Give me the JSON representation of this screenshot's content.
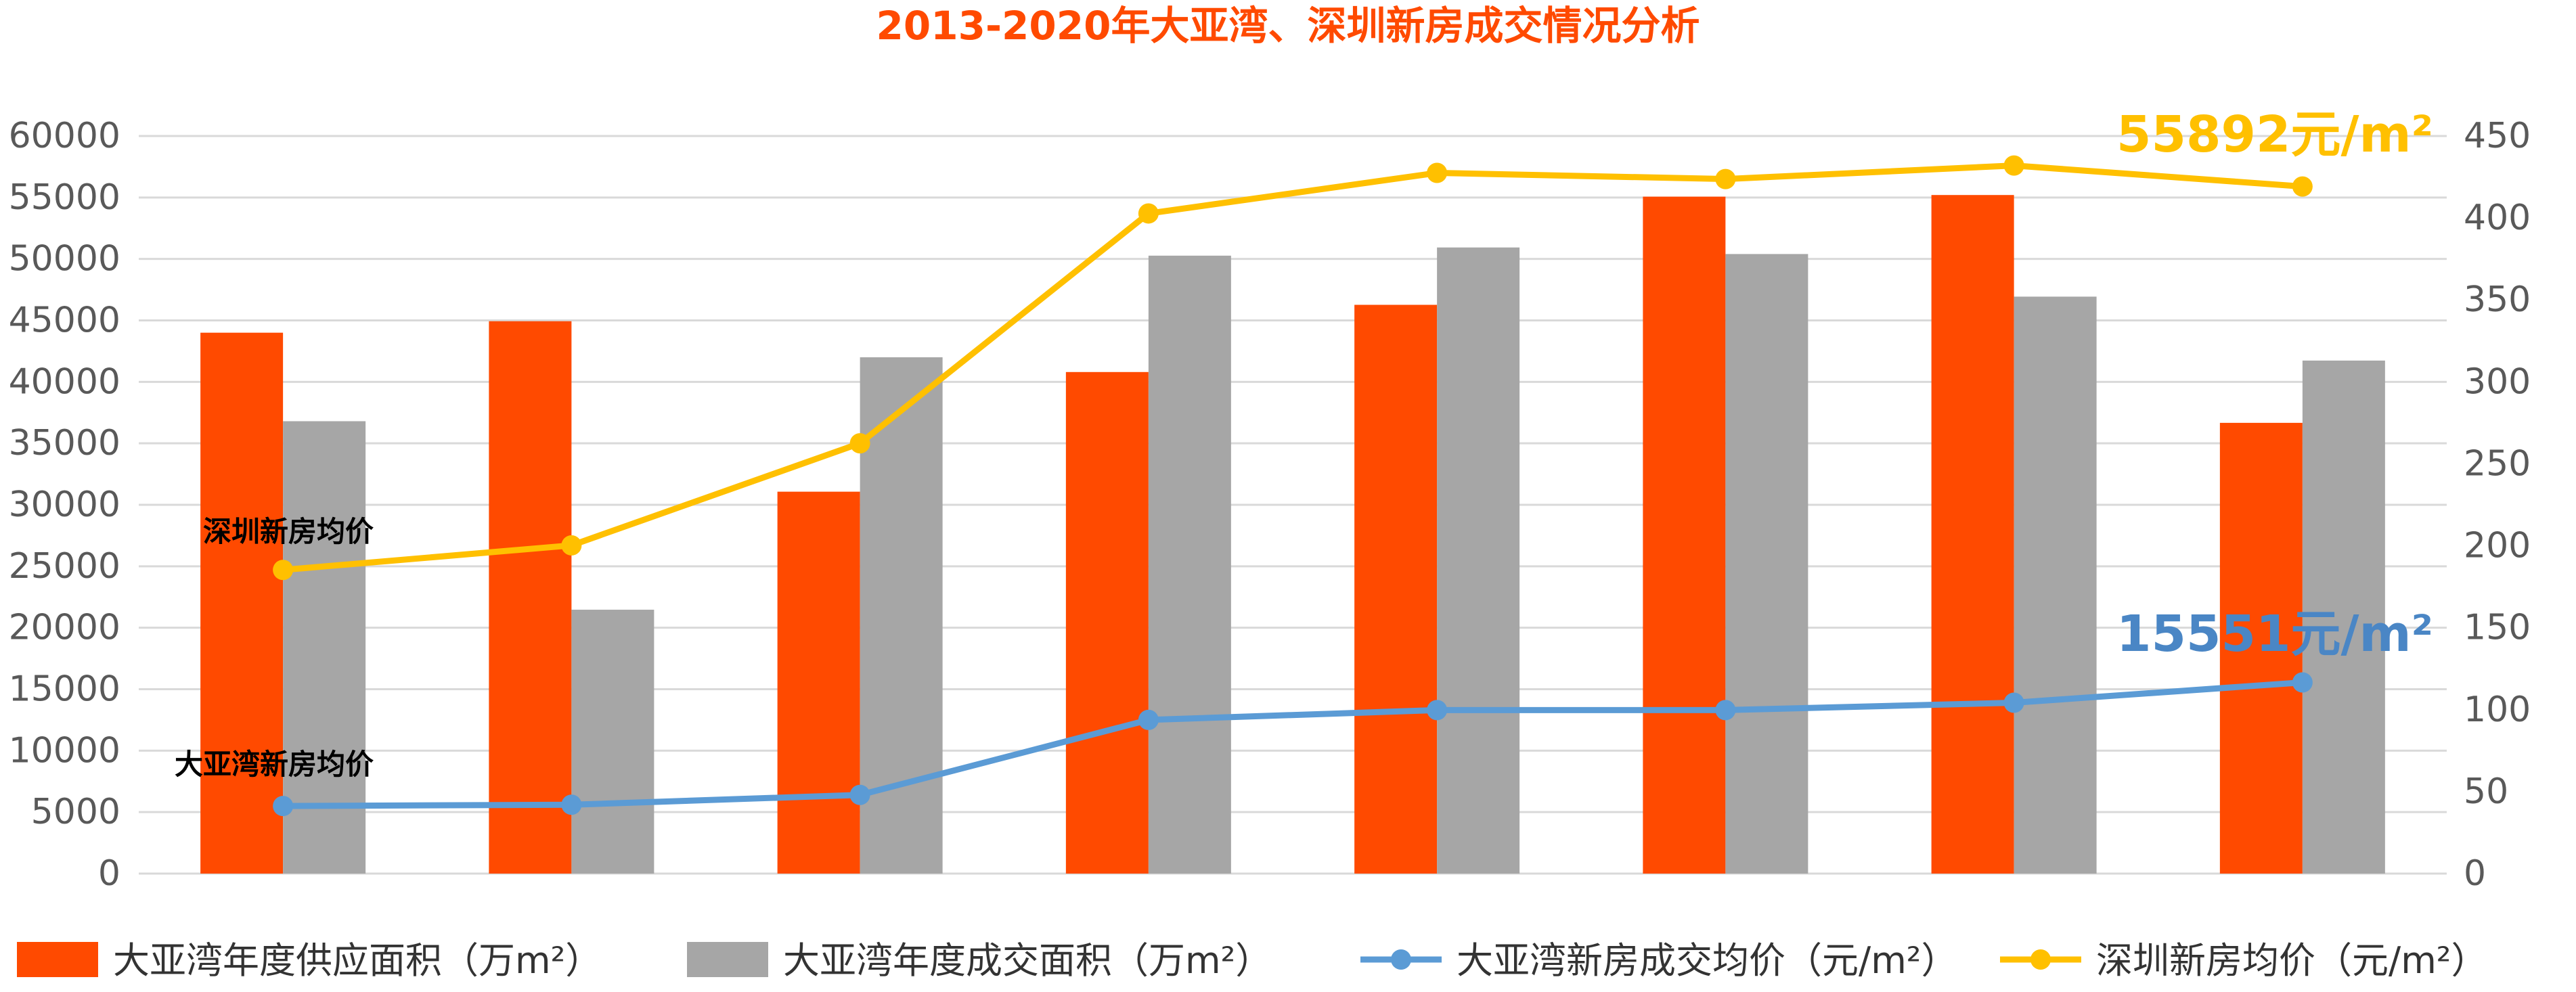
{
  "chart_data": {
    "type": "bar",
    "title": "2013-2020年大亚湾、深圳新房成交情况分析",
    "categories": [
      "",
      "",
      "",
      "",
      "",
      "",
      "",
      ""
    ],
    "y_left": {
      "ticks": [
        "0",
        "5000",
        "10000",
        "15000",
        "20000",
        "25000",
        "30000",
        "35000",
        "40000",
        "45000",
        "50000",
        "55000",
        "60000"
      ],
      "range": [
        0,
        60000
      ]
    },
    "y_right": {
      "ticks": [
        "0",
        "50",
        "100",
        "150",
        "200",
        "250",
        "300",
        "350",
        "400",
        "450"
      ],
      "range": [
        0,
        450
      ]
    },
    "grid": true,
    "legend_position": "bottom",
    "series": [
      {
        "name": "大亚湾年度供应面积（万m²）",
        "type": "bar",
        "axis": "right",
        "color": "#FF4A00",
        "values": [
          330,
          337,
          233,
          306,
          347,
          413,
          414,
          275
        ]
      },
      {
        "name": "大亚湾年度成交面积（万m²）",
        "type": "bar",
        "axis": "right",
        "color": "#A6A6A6",
        "values": [
          276,
          161,
          315,
          377,
          382,
          378,
          352,
          313
        ]
      },
      {
        "name": "大亚湾新房成交均价（元/m²）",
        "type": "line",
        "axis": "left",
        "color": "#5B9BD5",
        "values": [
          5500,
          5600,
          6400,
          12500,
          13300,
          13300,
          13900,
          15551
        ]
      },
      {
        "name": "深圳新房均价（元/m²）",
        "type": "line",
        "axis": "left",
        "color": "#FFC000",
        "values": [
          24700,
          26700,
          35000,
          53700,
          57000,
          56500,
          57600,
          55892
        ]
      }
    ],
    "annotations": {
      "sz_label": "深圳新房均价",
      "dyw_label": "大亚湾新房均价",
      "sz_end": "55892元/m²",
      "dyw_end": "15551元/m²"
    }
  }
}
